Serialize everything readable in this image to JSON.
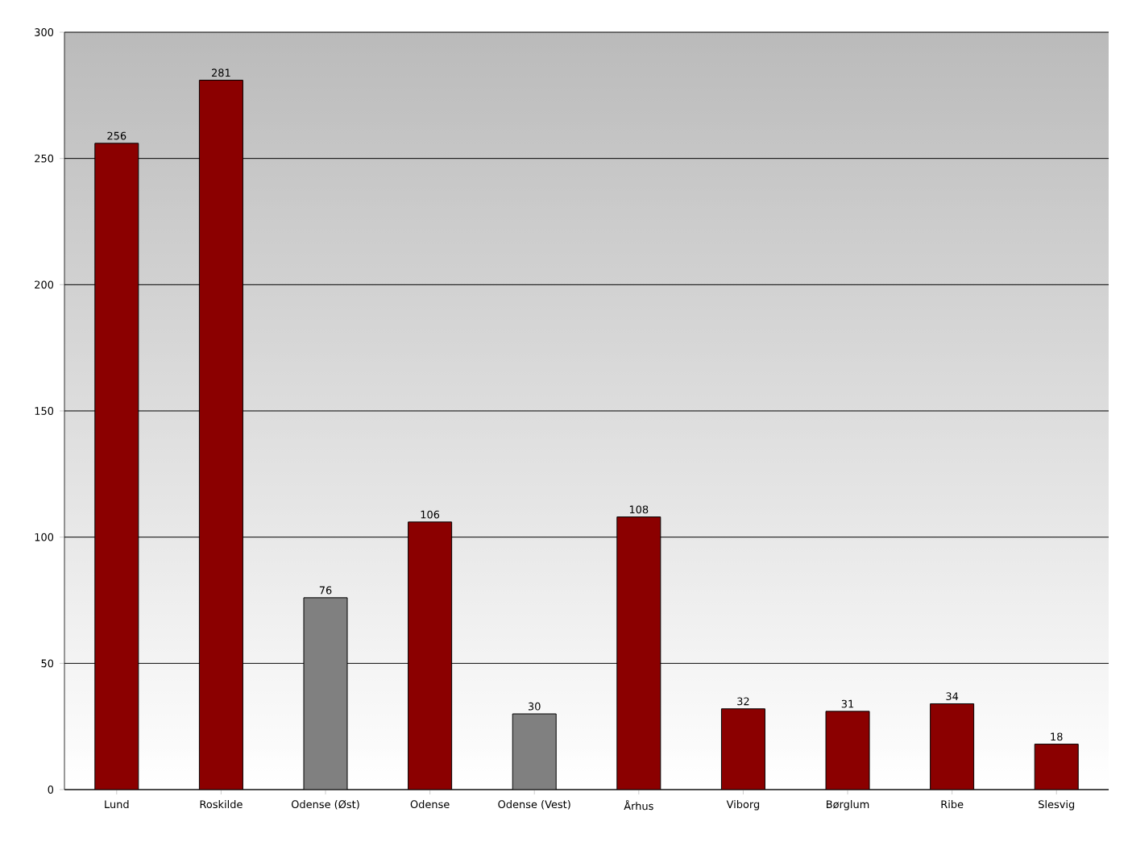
{
  "chart_data": {
    "type": "bar",
    "categories": [
      "Lund",
      "Roskilde",
      "Odense (Øst)",
      "Odense",
      "Odense (Vest)",
      "Århus",
      "Viborg",
      "Børglum",
      "Ribe",
      "Slesvig"
    ],
    "values": [
      256,
      281,
      76,
      106,
      30,
      108,
      32,
      31,
      34,
      18
    ],
    "colors": [
      "#8b0000",
      "#8b0000",
      "#808080",
      "#8b0000",
      "#808080",
      "#8b0000",
      "#8b0000",
      "#8b0000",
      "#8b0000",
      "#8b0000"
    ],
    "ylim": [
      0,
      300
    ],
    "yticks": [
      0,
      50,
      100,
      150,
      200,
      250,
      300
    ],
    "grid": "y",
    "data_labels": true
  }
}
